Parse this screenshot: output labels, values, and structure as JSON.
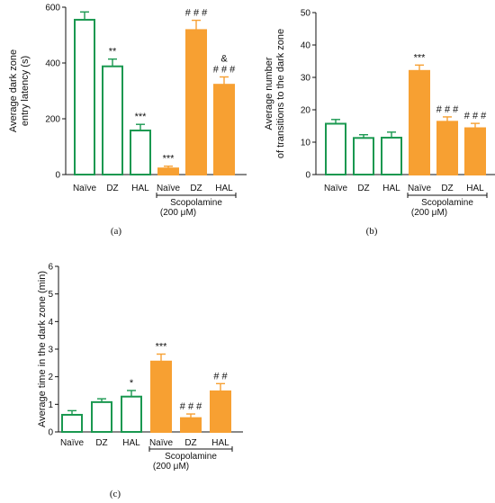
{
  "colors": {
    "control": "#1a9850",
    "scopolamine": "#f7a032",
    "axis": "#111111"
  },
  "chart_data": [
    {
      "panel_label": "(a)",
      "type": "bar",
      "ylabel_lines": [
        "Average dark zone",
        "entry latency (s)"
      ],
      "ylim": [
        0,
        600
      ],
      "yticks": [
        "0",
        "200",
        "400",
        "600"
      ],
      "categories": [
        "Naïve",
        "DZ",
        "HAL",
        "Naïve",
        "DZ",
        "HAL"
      ],
      "group": [
        "control",
        "control",
        "control",
        "scopolamine",
        "scopolamine",
        "scopolamine"
      ],
      "values": [
        555,
        388,
        158,
        22,
        518,
        322
      ],
      "errors": [
        28,
        26,
        22,
        8,
        35,
        28
      ],
      "significance": [
        "",
        "**",
        "***",
        "***",
        "# # #",
        "&\n# # #"
      ],
      "bracket_label": "Scopolamine",
      "bracket_sublabel": "(200 μM)"
    },
    {
      "panel_label": "(b)",
      "type": "bar",
      "ylabel_lines": [
        "Average number",
        "of transitions to the dark zone"
      ],
      "ylim": [
        0,
        50
      ],
      "yticks": [
        "0",
        "10",
        "20",
        "30",
        "40",
        "50"
      ],
      "categories": [
        "Naïve",
        "DZ",
        "HAL",
        "Naïve",
        "DZ",
        "HAL"
      ],
      "group": [
        "control",
        "control",
        "control",
        "scopolamine",
        "scopolamine",
        "scopolamine"
      ],
      "values": [
        15.7,
        11.3,
        11.4,
        32,
        16.3,
        14.3
      ],
      "errors": [
        1.3,
        1.0,
        1.7,
        1.8,
        1.5,
        1.5
      ],
      "significance": [
        "",
        "",
        "",
        "***",
        "# # #",
        "# # #"
      ],
      "bracket_label": "Scopolamine",
      "bracket_sublabel": "(200 μM)"
    },
    {
      "panel_label": "(c)",
      "type": "bar",
      "ylabel_lines": [
        "Average time in the dark zone (min)"
      ],
      "ylim": [
        0,
        6
      ],
      "yticks": [
        "0",
        "1",
        "2",
        "3",
        "4",
        "5",
        "6"
      ],
      "categories": [
        "Naïve",
        "DZ",
        "HAL",
        "Naïve",
        "DZ",
        "HAL"
      ],
      "group": [
        "control",
        "control",
        "control",
        "scopolamine",
        "scopolamine",
        "scopolamine"
      ],
      "values": [
        0.62,
        1.08,
        1.28,
        2.55,
        0.5,
        1.47
      ],
      "errors": [
        0.15,
        0.12,
        0.22,
        0.27,
        0.15,
        0.28
      ],
      "significance": [
        "",
        "",
        "*",
        "***",
        "# # #",
        "# #"
      ],
      "bracket_label": "Scopolamine",
      "bracket_sublabel": "(200 μM)"
    }
  ]
}
